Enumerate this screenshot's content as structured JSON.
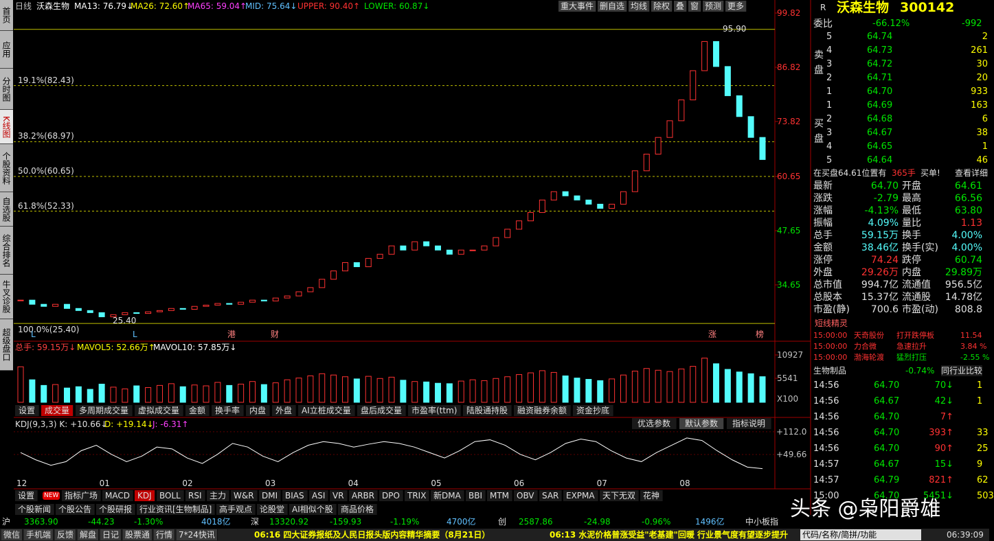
{
  "left_tabs": [
    "首页",
    "应用",
    "分时图",
    "K线图",
    "个股资料",
    "自选股",
    "综合排名",
    "牛叉诊股",
    "超级盘口"
  ],
  "header": {
    "items": [
      "日线",
      "沃森生物",
      "MA13: 76.79↓",
      "MA26: 72.60↑",
      "MA65: 59.04↑",
      "MID: 75.64↓",
      "UPPER: 90.40↑",
      "LOWER: 60.87↓"
    ],
    "colors": [
      "#c0c0c0",
      "#ffffff",
      "#ffffff",
      "#ffff00",
      "#ff40ff",
      "#60c0ff",
      "#ff3232",
      "#00e600"
    ],
    "buttons": [
      "重大事件",
      "删自选",
      "均线",
      "除权",
      "叠",
      "窗",
      "预测",
      "更多"
    ]
  },
  "kline": {
    "ylim": [
      22.3,
      100.97
    ],
    "yticks": [
      99.82,
      86.82,
      73.82,
      60.65,
      47.65,
      34.65
    ],
    "fib": [
      {
        "value": 82.43,
        "label": "19.1%(82.43)"
      },
      {
        "value": 68.97,
        "label": "38.2%(68.97)"
      },
      {
        "value": 60.65,
        "label": "50.0%(60.65)"
      },
      {
        "value": 52.33,
        "label": "61.8%(52.33)"
      },
      {
        "value": 25.4,
        "label": "100.0%(25.40)"
      }
    ],
    "high": {
      "value": 95.9,
      "label": "95.90"
    },
    "low": {
      "value": 25.4,
      "label": "25.40"
    },
    "events": [
      "L",
      "L",
      "港",
      "财",
      "涨",
      "榜"
    ],
    "close": [
      31,
      30,
      29.5,
      30,
      29,
      28.5,
      28,
      27,
      27.5,
      28,
      27.8,
      28.2,
      28.5,
      29,
      28.8,
      29.5,
      29.8,
      30.2,
      30,
      30.5,
      31,
      30.8,
      31.5,
      32,
      33,
      34,
      36,
      38,
      40,
      39,
      41,
      42,
      44,
      43,
      45,
      44,
      43,
      42,
      43,
      43,
      44,
      46,
      48,
      50,
      52,
      55,
      57,
      56,
      55,
      54,
      53,
      54,
      57,
      62,
      66,
      70,
      74,
      79,
      86,
      93,
      87,
      80,
      75,
      70,
      64.7
    ],
    "months": [
      "12",
      "01",
      "02",
      "03",
      "04",
      "05",
      "06",
      "07",
      "08"
    ]
  },
  "volume": {
    "header": [
      "总手: 59.15万↓",
      "MAVOL5: 52.66万↑",
      "MAVOL10: 57.85万↓"
    ],
    "ylim": [
      0,
      11720
    ],
    "yticks": [
      10927,
      5541
    ],
    "unit": "X100",
    "values": [
      8200,
      5200,
      3900,
      4100,
      3300,
      3600,
      3000,
      4200,
      3500,
      3100,
      3800,
      3400,
      3900,
      4300,
      3600,
      4000,
      3800,
      4600,
      3900,
      4200,
      4800,
      4100,
      4500,
      5200,
      5600,
      6100,
      6600,
      6300,
      5900,
      5400,
      6000,
      5500,
      5800,
      5100,
      4800,
      4700,
      4400,
      4300,
      4900,
      5200,
      5000,
      5500,
      5900,
      6400,
      6800,
      7300,
      6900,
      6100,
      5600,
      5300,
      5000,
      5400,
      6300,
      7200,
      7800,
      7400,
      7100,
      7700,
      8300,
      10200,
      8900,
      7600,
      7000,
      6600,
      5915
    ],
    "tabs": [
      "设置",
      "成交量",
      "多周期成交量",
      "虚拟成交量",
      "金额",
      "换手率",
      "内盘",
      "外盘",
      "AI立桩成交量",
      "盘后成交量",
      "市盈率(ttm)",
      "陆股通持股",
      "融资融券余额",
      "资金抄底"
    ]
  },
  "kdj": {
    "header": [
      "KDJ(9,3,3) K: +10.66↓",
      "D: +19.14↓",
      "J: -6.31↑"
    ],
    "buttons": [
      "优选参数",
      "默认参数",
      "指标说明"
    ],
    "ylim": [
      -22,
      125
    ],
    "yticks": [
      {
        "value": 112,
        "label": "+112.0"
      },
      {
        "value": 49.66,
        "label": "+49.66"
      }
    ],
    "k": [
      55,
      35,
      20,
      30,
      60,
      75,
      50,
      30,
      45,
      70,
      65,
      40,
      25,
      50,
      80,
      70,
      45,
      30,
      55,
      75,
      85,
      80,
      70,
      78,
      85,
      80,
      70,
      55,
      40,
      60,
      85,
      90,
      75,
      50,
      35,
      55,
      80,
      92,
      85,
      60,
      40,
      30,
      55,
      75,
      95,
      88,
      60,
      35,
      15,
      10.66
    ]
  },
  "indicator_tabs": [
    "设置",
    "指标广场",
    "MACD",
    "KDJ",
    "BOLL",
    "RSI",
    "主力",
    "W&R",
    "DMI",
    "BIAS",
    "ASI",
    "VR",
    "ARBR",
    "DPO",
    "TRIX",
    "新DMA",
    "BBI",
    "MTM",
    "OBV",
    "SAR",
    "EXPMA",
    "天下无双",
    "花神"
  ],
  "new_badge": "NEW",
  "info_tabs": [
    "个股新闻",
    "个股公告",
    "个股研报",
    "行业资讯[生物制品]",
    "高手观点",
    "论股堂",
    "AI相似个股",
    "商品价格"
  ],
  "index_bar": [
    [
      "沪",
      "3363.90",
      "-44.23",
      "-1.30%",
      "4018亿"
    ],
    [
      "深",
      "13320.92",
      "-159.93",
      "-1.19%",
      "4700亿"
    ],
    [
      "创",
      "2587.86",
      "-24.98",
      "-0.96%",
      "1496亿"
    ]
  ],
  "index_more": "中小板指",
  "status_bar": {
    "items": [
      "微信",
      "手机端",
      "反馈",
      "解盘",
      "日记",
      "股票通",
      "行情",
      "7*24快讯"
    ],
    "news": [
      "06:16 四大证券报纸及人民日报头版内容精华摘要（8月21日）",
      "06:13 水泥价格普涨受益\"老基建\"回暖 行业景气度有望逐步提升"
    ],
    "search": "代码/名称/简拼/功能",
    "time": "06:39:09"
  },
  "watermark": "头条 @枭阳爵雄",
  "quote": {
    "flag": "R",
    "name": "沃森生物",
    "code": "300142",
    "weibi_label": "委比",
    "weibi": "-66.12%",
    "weicha": "-992",
    "sell_label": "卖盘",
    "buy_label": "买盘",
    "sell": [
      [
        "5",
        "64.74",
        "2"
      ],
      [
        "4",
        "64.73",
        "261"
      ],
      [
        "3",
        "64.72",
        "30"
      ],
      [
        "2",
        "64.71",
        "20"
      ],
      [
        "1",
        "64.70",
        "933"
      ]
    ],
    "buy": [
      [
        "1",
        "64.69",
        "163"
      ],
      [
        "2",
        "64.68",
        "6"
      ],
      [
        "3",
        "64.67",
        "38"
      ],
      [
        "4",
        "64.65",
        "1"
      ],
      [
        "5",
        "64.64",
        "46"
      ]
    ],
    "notice": [
      "在买盘64.61位置有",
      "365手",
      "买单!",
      "查看详细"
    ],
    "stats": [
      [
        "最新",
        "64.70",
        "开盘",
        "64.61"
      ],
      [
        "涨跌",
        "-2.79",
        "最高",
        "66.56"
      ],
      [
        "涨幅",
        "-4.13%",
        "最低",
        "63.80"
      ],
      [
        "振幅",
        "4.09%",
        "量比",
        "1.13"
      ],
      [
        "总手",
        "59.15万",
        "换手",
        "4.00%"
      ],
      [
        "金额",
        "38.46亿",
        "换手(实)",
        "4.00%"
      ],
      [
        "涨停",
        "74.24",
        "跌停",
        "60.74"
      ],
      [
        "外盘",
        "29.26万",
        "内盘",
        "29.89万"
      ],
      [
        "总市值",
        "994.7亿",
        "流通值",
        "956.5亿"
      ],
      [
        "总股本",
        "15.37亿",
        "流通股",
        "14.78亿"
      ],
      [
        "市盈(静)",
        "700.6",
        "市盈(动)",
        "808.8"
      ]
    ],
    "sprite_title": "短线精灵",
    "sprite": [
      [
        "15:00:00",
        "天奇股份",
        "打开跌停板",
        "11.54"
      ],
      [
        "15:00:00",
        "力合微",
        "急速拉升",
        "3.84 %"
      ],
      [
        "15:00:00",
        "渤海轮渡",
        "猛烈打压",
        "-2.55 %"
      ]
    ],
    "industry": [
      "生物制品",
      "-0.74%",
      "同行业比较"
    ],
    "ticks": [
      [
        "14:56",
        "64.70",
        "70↓",
        "1"
      ],
      [
        "14:56",
        "64.67",
        "42↓",
        "1"
      ],
      [
        "14:56",
        "64.70",
        "7↑"
      ],
      [
        "14:56",
        "64.70",
        "393↑",
        "33"
      ],
      [
        "14:56",
        "64.70",
        "90↑",
        "25"
      ],
      [
        "14:57",
        "64.67",
        "15↓",
        "9"
      ],
      [
        "14:57",
        "64.79",
        "821↑",
        "62"
      ],
      [
        "15:00",
        "64.70",
        "5451↓",
        "503"
      ]
    ]
  }
}
